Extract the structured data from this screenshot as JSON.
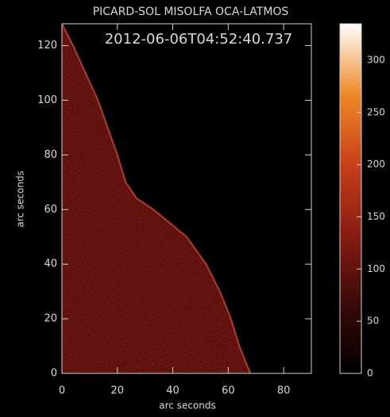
{
  "chart_data": {
    "type": "image",
    "title": "PICARD-SOL MISOLFA OCA-LATMOS",
    "annotation": "2012-06-06T04:52:40.737",
    "xlabel": "arc seconds",
    "ylabel": "arc seconds",
    "xlim": [
      0,
      90
    ],
    "xticks": [
      0,
      20,
      40,
      60,
      80
    ],
    "ylim": [
      0,
      128
    ],
    "yticks": [
      0,
      20,
      40,
      60,
      80,
      100,
      120
    ],
    "limb_x": [
      0,
      4,
      13,
      20,
      23,
      27,
      33,
      45,
      52,
      57,
      61,
      64,
      68
    ],
    "limb_y": [
      128,
      120,
      100,
      80,
      70,
      64,
      60,
      50,
      40,
      30,
      20,
      10,
      0
    ],
    "color": "#b3231c",
    "clim": [
      0,
      335
    ],
    "cticks": [
      0,
      50,
      100,
      150,
      200,
      250,
      300
    ],
    "colormap": [
      "#000000",
      "#3a0a08",
      "#8a1c12",
      "#c8401a",
      "#ee8a28",
      "#ffffff"
    ]
  }
}
